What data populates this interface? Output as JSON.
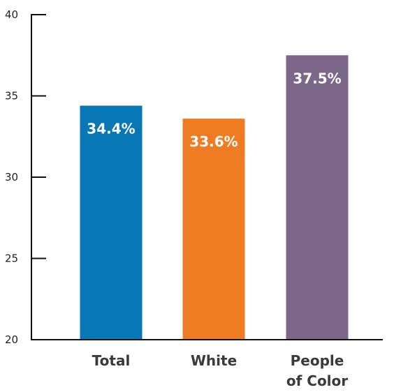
{
  "chart_data": {
    "type": "bar",
    "categories": [
      [
        "Total"
      ],
      [
        "White"
      ],
      [
        "People",
        "of Color"
      ]
    ],
    "values": [
      34.4,
      33.6,
      37.5
    ],
    "data_labels": [
      "34.4%",
      "33.6%",
      "37.5%"
    ],
    "colors": [
      "#0877b6",
      "#ef7c22",
      "#7b6888"
    ],
    "ylim": [
      20,
      40
    ],
    "yticks": [
      20,
      25,
      30,
      35,
      40
    ],
    "grid": false,
    "legend": "none"
  }
}
